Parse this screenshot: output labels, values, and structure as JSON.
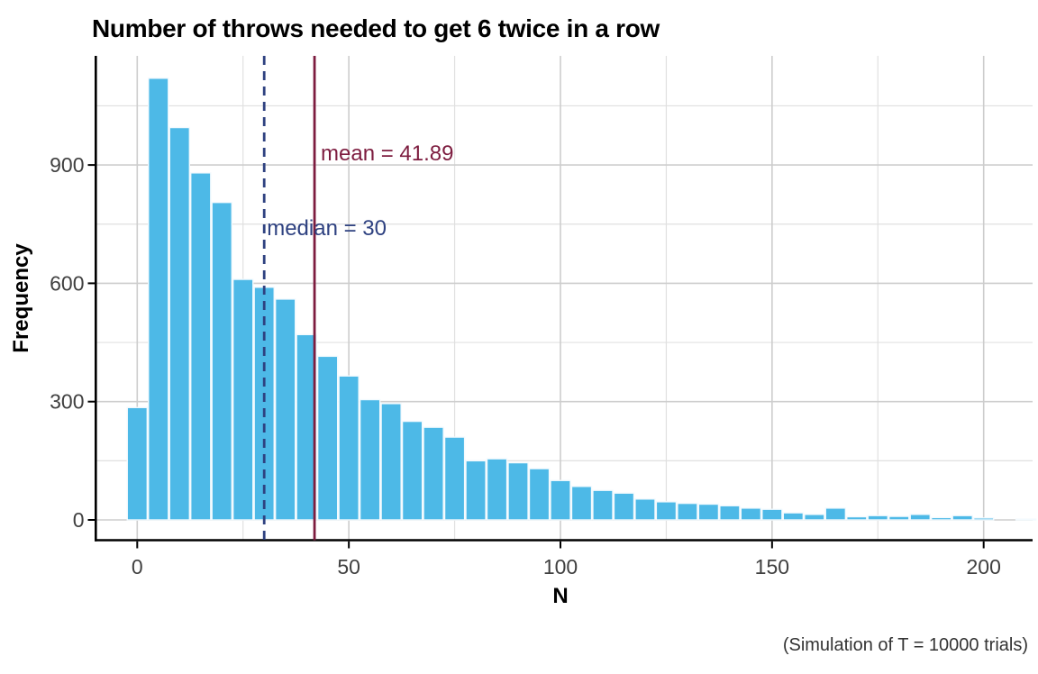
{
  "chart_data": {
    "type": "bar",
    "subtype": "histogram",
    "title": "Number of throws needed to get 6 twice in a row",
    "xlabel": "N",
    "ylabel": "Frequency",
    "caption": "(Simulation of T = 10000 trials)",
    "bin_width": 5,
    "bin_centers": [
      0,
      5,
      10,
      15,
      20,
      25,
      30,
      35,
      40,
      45,
      50,
      55,
      60,
      65,
      70,
      75,
      80,
      85,
      90,
      95,
      100,
      105,
      110,
      115,
      120,
      125,
      130,
      135,
      140,
      145,
      150,
      155,
      160,
      165,
      170,
      175,
      180,
      185,
      190,
      195,
      200,
      205,
      210
    ],
    "frequencies": [
      285,
      1120,
      995,
      880,
      805,
      610,
      590,
      560,
      470,
      415,
      365,
      305,
      295,
      250,
      235,
      210,
      150,
      155,
      145,
      130,
      100,
      85,
      75,
      68,
      53,
      46,
      42,
      40,
      36,
      30,
      27,
      18,
      14,
      30,
      8,
      11,
      9,
      14,
      6,
      11,
      5,
      0,
      2
    ],
    "x_ticks": [
      0,
      50,
      100,
      150,
      200
    ],
    "x_minor_ticks": [
      25,
      75,
      125,
      175
    ],
    "y_ticks": [
      0,
      300,
      600,
      900
    ],
    "y_minor_ticks": [
      150,
      450,
      750,
      1050
    ],
    "xlim": [
      -10,
      212
    ],
    "ylim": [
      0,
      1176
    ],
    "grid": "on",
    "legend_position": "none",
    "annotations": {
      "mean": {
        "value": 41.89,
        "label": "mean = 41.89",
        "line_style": "solid"
      },
      "median": {
        "value": 30,
        "label": "median = 30",
        "line_style": "dashed"
      }
    },
    "colors": {
      "bar_fill": "#4DB9E7",
      "bar_stroke": "#F3FAFE",
      "grid_major": "#CDCDCD",
      "grid_minor": "#E0E0E0",
      "axis_line": "#000000",
      "tick_label": "#404040",
      "title": "#000000",
      "caption": "#333333",
      "mean": "#7D1C3F",
      "median": "#2E4180"
    }
  }
}
